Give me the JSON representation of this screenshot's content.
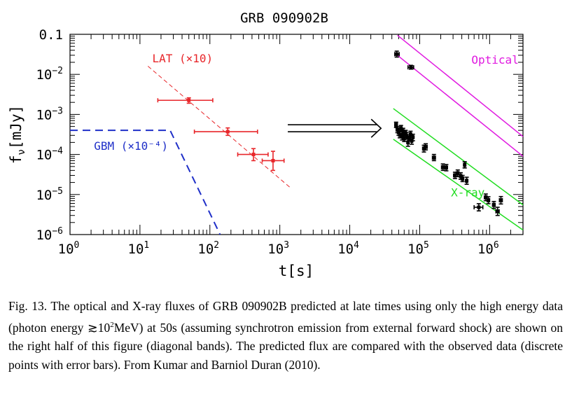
{
  "chart_data": {
    "type": "scatter",
    "title": "GRB 090902B",
    "xlabel": "t[s]",
    "ylabel": "f_ν[mJy]",
    "xscale": "log",
    "yscale": "log",
    "xlim": [
      1,
      3000000
    ],
    "ylim": [
      1e-06,
      0.1
    ],
    "x_tick_labels": [
      "10^0",
      "10^1",
      "10^2",
      "10^3",
      "10^4",
      "10^5",
      "10^6"
    ],
    "y_tick_labels": [
      "10^-6",
      "10^-5",
      "10^-4",
      "10^-3",
      "10^-2",
      "0.1"
    ],
    "arrow_from_to": [
      [
        1300,
        0.00045
      ],
      [
        28000,
        0.00045
      ]
    ],
    "annotations": [
      {
        "text": "LAT (×10)",
        "color": "#e8262a",
        "x": 15,
        "y": 0.02
      },
      {
        "text": "GBM (×10⁻⁴)",
        "color": "#1f2fc8",
        "x": 2.2,
        "y": 0.00013
      },
      {
        "text": "Optical",
        "color": "#e01ae0",
        "x": 550000,
        "y": 0.0185
      },
      {
        "text": "X-ray",
        "color": "#22dd22",
        "x": 280000,
        "y": 9e-06
      }
    ],
    "series": [
      {
        "name": "LAT (×10)",
        "color": "#e8262a",
        "kind": "points",
        "points": [
          {
            "x": 50,
            "y": 0.00225,
            "xerr": [
              18,
              110
            ],
            "yerr": [
              0.0019,
              0.0026
            ]
          },
          {
            "x": 180,
            "y": 0.00037,
            "xerr": [
              60,
              480
            ],
            "yerr": [
              0.0003,
              0.00046
            ]
          },
          {
            "x": 420,
            "y": 0.0001,
            "xerr": [
              250,
              680
            ],
            "yerr": [
              7e-05,
              0.00014
            ]
          },
          {
            "x": 800,
            "y": 7e-05,
            "xerr": [
              560,
              1150
            ],
            "yerr": [
              4e-05,
              0.00012
            ]
          }
        ]
      },
      {
        "name": "LAT fit",
        "color": "#e8262a",
        "kind": "dashed-line",
        "points": [
          {
            "x": 13,
            "y": 0.016
          },
          {
            "x": 1400,
            "y": 1.5e-05
          }
        ]
      },
      {
        "name": "GBM (×10⁻⁴)",
        "color": "#1f2fc8",
        "kind": "dashed-line",
        "points": [
          {
            "x": 1,
            "y": 0.0004
          },
          {
            "x": 27,
            "y": 0.0004
          },
          {
            "x": 140,
            "y": 1e-06
          }
        ]
      },
      {
        "name": "Optical band",
        "color": "#e01ae0",
        "kind": "lines",
        "lines": [
          [
            {
              "x": 48000,
              "y": 0.095
            },
            {
              "x": 3000000,
              "y": 0.00028
            }
          ],
          [
            {
              "x": 48000,
              "y": 0.03
            },
            {
              "x": 3000000,
              "y": 9e-05
            }
          ]
        ]
      },
      {
        "name": "X-ray band",
        "color": "#22dd22",
        "kind": "lines",
        "lines": [
          [
            {
              "x": 42000,
              "y": 0.0014
            },
            {
              "x": 3000000,
              "y": 5.5e-06
            }
          ],
          [
            {
              "x": 42000,
              "y": 0.00024
            },
            {
              "x": 3000000,
              "y": 1.3e-06
            }
          ]
        ]
      },
      {
        "name": "Optical data",
        "color": "#000000",
        "kind": "points",
        "points": [
          {
            "x": 47000,
            "y": 0.032,
            "xerr": [
              44000,
              51000
            ],
            "yerr": [
              0.027,
              0.038
            ]
          },
          {
            "x": 75000,
            "y": 0.015,
            "xerr": [
              68000,
              82000
            ],
            "yerr": [
              0.0135,
              0.0168
            ]
          }
        ]
      },
      {
        "name": "X-ray data",
        "color": "#000000",
        "kind": "points",
        "points": [
          {
            "x": 46000,
            "y": 0.00055,
            "xerr": [
              44000,
              48000
            ],
            "yerr": [
              0.00047,
              0.00064
            ]
          },
          {
            "x": 48000,
            "y": 0.00042,
            "xerr": [
              46000,
              50000
            ],
            "yerr": [
              0.00035,
              0.0005
            ]
          },
          {
            "x": 50000,
            "y": 0.00036,
            "xerr": [
              48000,
              52000
            ],
            "yerr": [
              0.0003,
              0.00043
            ]
          },
          {
            "x": 52000,
            "y": 0.00031,
            "xerr": [
              50000,
              54000
            ],
            "yerr": [
              0.00026,
              0.00037
            ]
          },
          {
            "x": 54000,
            "y": 0.00045,
            "xerr": [
              52000,
              56000
            ],
            "yerr": [
              0.00038,
              0.00053
            ]
          },
          {
            "x": 56000,
            "y": 0.00028,
            "xerr": [
              54000,
              58000
            ],
            "yerr": [
              0.00023,
              0.00034
            ]
          },
          {
            "x": 58000,
            "y": 0.00038,
            "xerr": [
              56000,
              60000
            ],
            "yerr": [
              0.00032,
              0.00045
            ]
          },
          {
            "x": 60000,
            "y": 0.00025,
            "xerr": [
              58000,
              62000
            ],
            "yerr": [
              0.00021,
              0.0003
            ]
          },
          {
            "x": 63000,
            "y": 0.00034,
            "xerr": [
              61000,
              65000
            ],
            "yerr": [
              0.00028,
              0.0004
            ]
          },
          {
            "x": 65000,
            "y": 0.00029,
            "xerr": [
              63000,
              67000
            ],
            "yerr": [
              0.00024,
              0.00035
            ]
          },
          {
            "x": 68000,
            "y": 0.0002,
            "xerr": [
              66000,
              70000
            ],
            "yerr": [
              0.00016,
              0.00025
            ]
          },
          {
            "x": 71000,
            "y": 0.00026,
            "xerr": [
              69000,
              73000
            ],
            "yerr": [
              0.00022,
              0.00031
            ]
          },
          {
            "x": 74000,
            "y": 0.00032,
            "xerr": [
              72000,
              76000
            ],
            "yerr": [
              0.00027,
              0.00038
            ]
          },
          {
            "x": 77000,
            "y": 0.00022,
            "xerr": [
              75000,
              79000
            ],
            "yerr": [
              0.00018,
              0.00027
            ]
          },
          {
            "x": 80000,
            "y": 0.00027,
            "xerr": [
              78000,
              82000
            ],
            "yerr": [
              0.00022,
              0.00032
            ]
          },
          {
            "x": 115000,
            "y": 0.00014,
            "xerr": [
              110000,
              120000
            ],
            "yerr": [
              0.000115,
              0.00017
            ]
          },
          {
            "x": 122000,
            "y": 0.000155,
            "xerr": [
              116000,
              128000
            ],
            "yerr": [
              0.00013,
              0.000185
            ]
          },
          {
            "x": 160000,
            "y": 8.3e-05,
            "xerr": [
              152000,
              168000
            ],
            "yerr": [
              7e-05,
              0.0001
            ]
          },
          {
            "x": 215000,
            "y": 4.8e-05,
            "xerr": [
              205000,
              225000
            ],
            "yerr": [
              4e-05,
              5.8e-05
            ]
          },
          {
            "x": 240000,
            "y": 4.7e-05,
            "xerr": [
              230000,
              250000
            ],
            "yerr": [
              3.9e-05,
              5.6e-05
            ]
          },
          {
            "x": 320000,
            "y": 3e-05,
            "xerr": [
              305000,
              335000
            ],
            "yerr": [
              2.5e-05,
              3.6e-05
            ]
          },
          {
            "x": 350000,
            "y": 3.4e-05,
            "xerr": [
              335000,
              365000
            ],
            "yerr": [
              2.8e-05,
              4.1e-05
            ]
          },
          {
            "x": 385000,
            "y": 2.9e-05,
            "xerr": [
              370000,
              400000
            ],
            "yerr": [
              2.4e-05,
              3.5e-05
            ]
          },
          {
            "x": 410000,
            "y": 2.5e-05,
            "xerr": [
              395000,
              425000
            ],
            "yerr": [
              2.1e-05,
              3e-05
            ]
          },
          {
            "x": 440000,
            "y": 5.5e-05,
            "xerr": [
              425000,
              455000
            ],
            "yerr": [
              4.6e-05,
              6.6e-05
            ]
          },
          {
            "x": 470000,
            "y": 2.2e-05,
            "xerr": [
              455000,
              485000
            ],
            "yerr": [
              1.8e-05,
              2.7e-05
            ]
          },
          {
            "x": 700000,
            "y": 4.8e-06,
            "xerr": [
              600000,
              800000
            ],
            "yerr": [
              3.9e-06,
              5.9e-06
            ]
          },
          {
            "x": 880000,
            "y": 8.5e-06,
            "xerr": [
              840000,
              920000
            ],
            "yerr": [
              7e-06,
              1.03e-05
            ]
          },
          {
            "x": 960000,
            "y": 7.2e-06,
            "xerr": [
              920000,
              1000000
            ],
            "yerr": [
              5.9e-06,
              8.8e-06
            ]
          },
          {
            "x": 1150000,
            "y": 5.5e-06,
            "xerr": [
              1100000,
              1200000
            ],
            "yerr": [
              4.5e-06,
              6.7e-06
            ]
          },
          {
            "x": 1300000,
            "y": 3.8e-06,
            "xerr": [
              1230000,
              1370000
            ],
            "yerr": [
              3e-06,
              4.8e-06
            ]
          },
          {
            "x": 1450000,
            "y": 7.2e-06,
            "xerr": [
              1380000,
              1520000
            ],
            "yerr": [
              5.8e-06,
              8.9e-06
            ]
          }
        ]
      }
    ]
  },
  "caption": {
    "part1": "Fig. 13. The optical and X-ray fluxes of GRB 090902B predicted at late times using only the high energy data (photon energy ",
    "symbol": "≳",
    "energy": "10",
    "energy_exp": "2",
    "part2": "MeV) at 50s (assuming synchrotron emission from external forward shock) are shown on the right half of this figure (diagonal bands). The predicted flux are compared with the observed data (discrete points with error bars). From Kumar and Barniol Duran (2010)."
  }
}
